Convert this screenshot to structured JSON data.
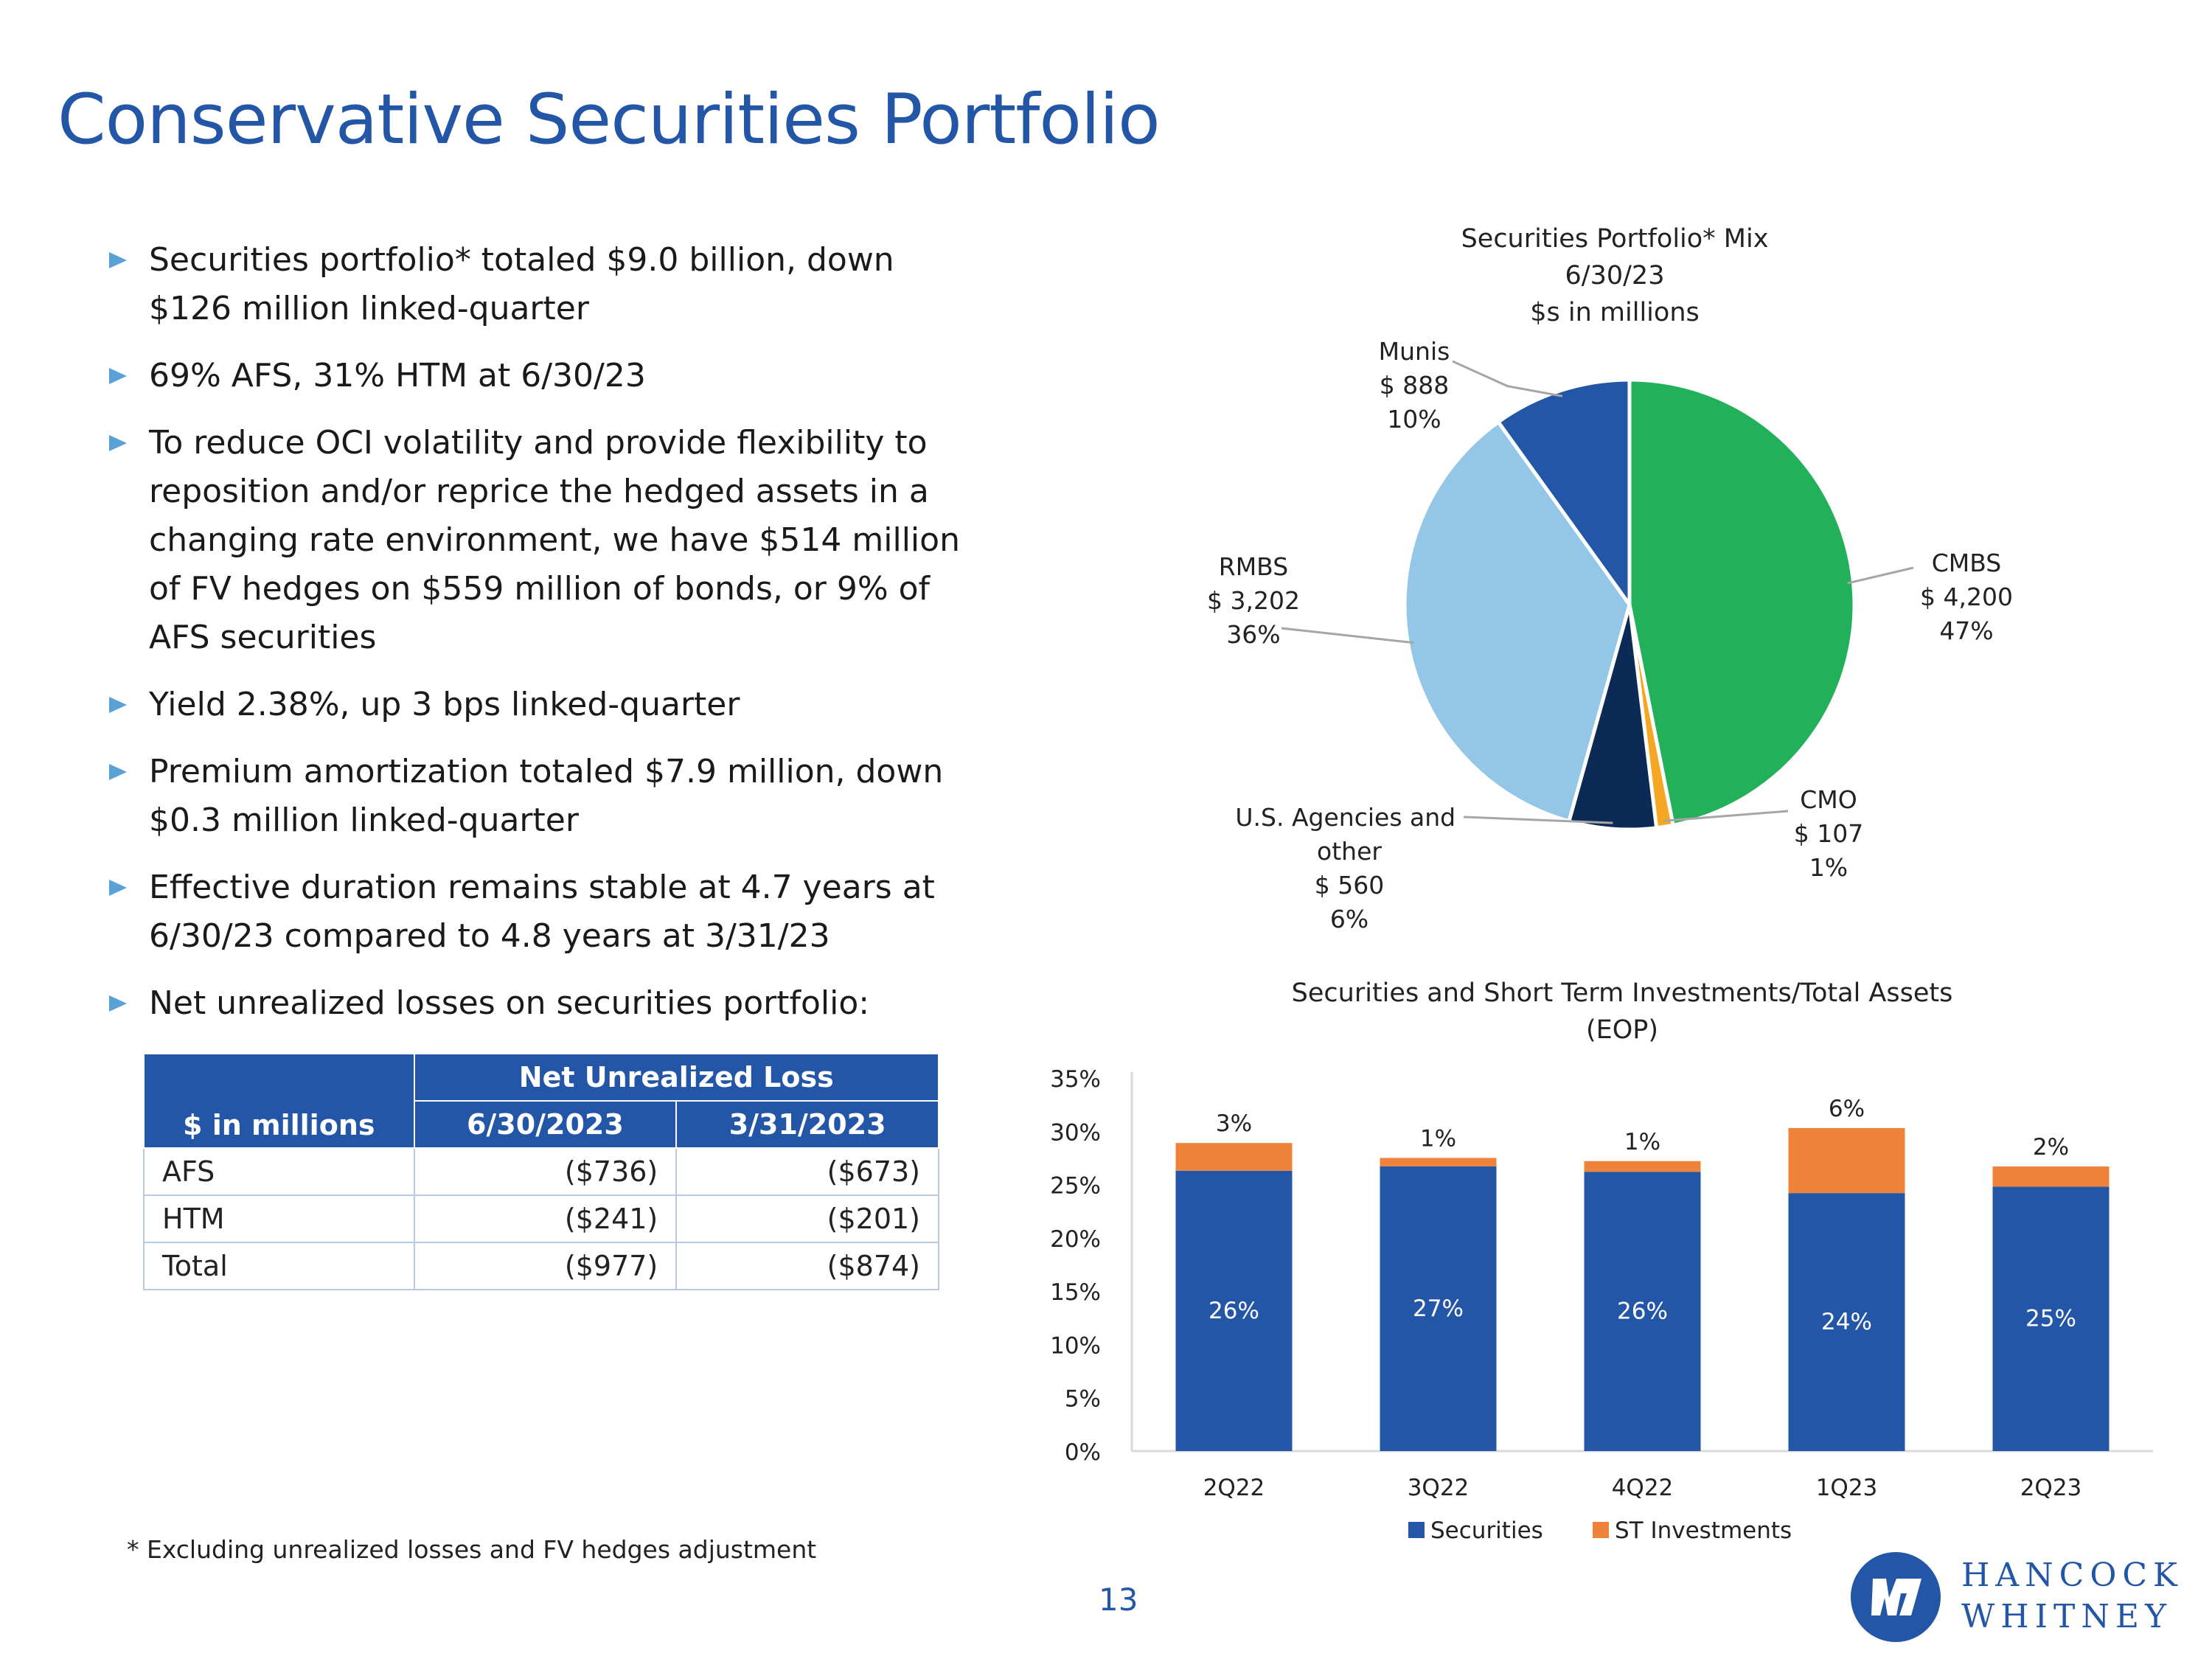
{
  "title": "Conservative Securities Portfolio",
  "bullets": [
    "Securities portfolio* totaled $9.0 billion, down $126 million linked-quarter",
    "69% AFS, 31% HTM at 6/30/23",
    "To reduce OCI volatility and provide flexibility to reposition and/or reprice the hedged assets in a changing rate environment, we have $514 million of FV hedges on $559 million of bonds, or 9% of AFS securities",
    "Yield 2.38%, up 3 bps linked-quarter",
    "Premium amortization totaled $7.9 million, down $0.3 million linked-quarter",
    "Effective duration remains stable at 4.7 years at 6/30/23 compared to 4.8 years at 3/31/23",
    "Net unrealized losses on securities portfolio:"
  ],
  "loss_table": {
    "corner_label": "$ in millions",
    "group_header": "Net Unrealized Loss",
    "columns": [
      "6/30/2023",
      "3/31/2023"
    ],
    "rows": [
      {
        "label": "AFS",
        "values": [
          "($736)",
          "($673)"
        ]
      },
      {
        "label": "HTM",
        "values": [
          "($241)",
          "($201)"
        ]
      },
      {
        "label": "Total",
        "values": [
          "($977)",
          "($874)"
        ]
      }
    ]
  },
  "footnote": "* Excluding unrealized losses and FV hedges adjustment",
  "page_number": "13",
  "logo": {
    "line1": "HANCOCK",
    "line2": "WHITNEY"
  },
  "chart_data": [
    {
      "type": "pie",
      "title_lines": [
        "Securities Portfolio* Mix",
        "6/30/23",
        "$s in millions"
      ],
      "slices": [
        {
          "name": "CMBS",
          "value": 4200,
          "value_label": "$ 4,200",
          "pct_label": "47%",
          "color": "#22b15a"
        },
        {
          "name": "CMO",
          "value": 107,
          "value_label": "$ 107",
          "pct_label": "1%",
          "color": "#f5a623"
        },
        {
          "name": "U.S. Agencies and other",
          "value": 560,
          "value_label": "$ 560",
          "pct_label": "6%",
          "color": "#0b2a55"
        },
        {
          "name": "RMBS",
          "value": 3202,
          "value_label": "$ 3,202",
          "pct_label": "36%",
          "color": "#93c6e7"
        },
        {
          "name": "Munis",
          "value": 888,
          "value_label": "$ 888",
          "pct_label": "10%",
          "color": "#2356a6"
        }
      ]
    },
    {
      "type": "bar",
      "stacked": true,
      "title_lines": [
        "Securities and Short Term Investments/Total Assets",
        "(EOP)"
      ],
      "categories": [
        "2Q22",
        "3Q22",
        "4Q22",
        "1Q23",
        "2Q23"
      ],
      "series": [
        {
          "name": "Securities",
          "values": [
            26.3,
            26.7,
            26.2,
            24.2,
            24.8
          ],
          "labels": [
            "26%",
            "27%",
            "26%",
            "24%",
            "25%"
          ],
          "color": "#2356a6"
        },
        {
          "name": "ST Investments",
          "values": [
            2.6,
            0.8,
            1.0,
            6.1,
            1.9
          ],
          "labels": [
            "3%",
            "1%",
            "1%",
            "6%",
            "2%"
          ],
          "color": "#f0833a"
        }
      ],
      "ylim": [
        0,
        35
      ],
      "yticks": [
        "0%",
        "5%",
        "10%",
        "15%",
        "20%",
        "25%",
        "30%",
        "35%"
      ],
      "legend": [
        "Securities",
        "ST Investments"
      ]
    }
  ]
}
